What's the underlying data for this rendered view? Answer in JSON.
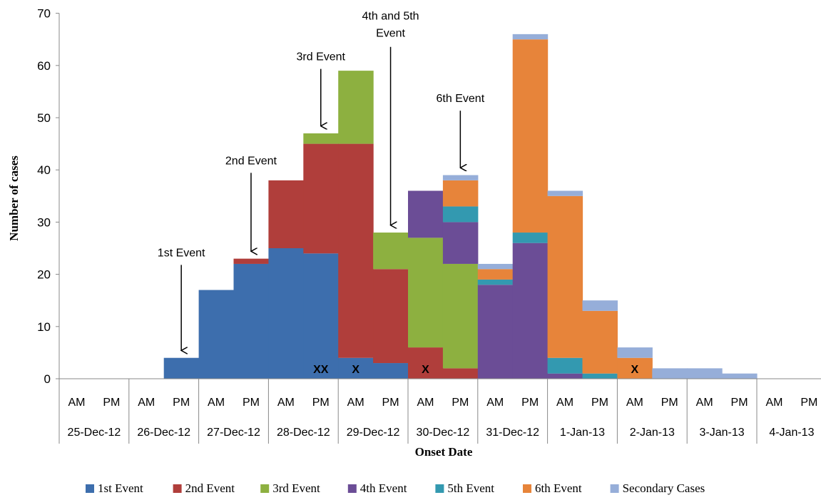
{
  "chart_data": {
    "type": "bar",
    "stacked": true,
    "ylabel": "Number of cases",
    "xlabel": "Onset Date",
    "ylim": [
      0,
      70
    ],
    "yticks": [
      0,
      10,
      20,
      30,
      40,
      50,
      60,
      70
    ],
    "grid": false,
    "legend_position": "bottom",
    "categories": [
      "AM",
      "PM",
      "AM",
      "PM",
      "AM",
      "PM",
      "AM",
      "PM",
      "AM",
      "PM",
      "AM",
      "PM",
      "AM",
      "PM",
      "AM",
      "PM",
      "AM",
      "PM",
      "AM",
      "PM",
      "AM",
      "PM"
    ],
    "dates": [
      "25-Dec-12",
      "26-Dec-12",
      "27-Dec-12",
      "28-Dec-12",
      "29-Dec-12",
      "30-Dec-12",
      "31-Dec-12",
      "1-Jan-13",
      "2-Jan-13",
      "3-Jan-13",
      "4-Jan-13"
    ],
    "series": [
      {
        "name": "1st Event",
        "color": "#3d6ead",
        "values": [
          0,
          0,
          0,
          4,
          17,
          22,
          25,
          24,
          4,
          3,
          0,
          0,
          0,
          0,
          0,
          0,
          0,
          0,
          0,
          0,
          0,
          0
        ]
      },
      {
        "name": "2nd Event",
        "color": "#b03e3b",
        "values": [
          0,
          0,
          0,
          0,
          0,
          1,
          13,
          21,
          41,
          18,
          6,
          2,
          0,
          0,
          0,
          0,
          0,
          0,
          0,
          0,
          0,
          0
        ]
      },
      {
        "name": "3rd Event",
        "color": "#8db040",
        "values": [
          0,
          0,
          0,
          0,
          0,
          0,
          0,
          2,
          14,
          7,
          21,
          20,
          0,
          0,
          0,
          0,
          0,
          0,
          0,
          0,
          0,
          0
        ]
      },
      {
        "name": "4th Event",
        "color": "#6b4d96",
        "values": [
          0,
          0,
          0,
          0,
          0,
          0,
          0,
          0,
          0,
          0,
          9,
          8,
          18,
          26,
          1,
          0,
          0,
          0,
          0,
          0,
          0,
          0
        ]
      },
      {
        "name": "5th Event",
        "color": "#3399b0",
        "values": [
          0,
          0,
          0,
          0,
          0,
          0,
          0,
          0,
          0,
          0,
          0,
          3,
          1,
          2,
          3,
          1,
          0,
          0,
          0,
          0,
          0,
          0
        ]
      },
      {
        "name": "6th Event",
        "color": "#e7843a",
        "values": [
          0,
          0,
          0,
          0,
          0,
          0,
          0,
          0,
          0,
          0,
          0,
          5,
          2,
          37,
          31,
          12,
          4,
          0,
          0,
          0,
          0,
          0
        ]
      },
      {
        "name": "Secondary Cases",
        "color": "#96aed9",
        "values": [
          0,
          0,
          0,
          0,
          0,
          0,
          0,
          0,
          0,
          0,
          0,
          1,
          1,
          1,
          1,
          2,
          2,
          2,
          2,
          1,
          0,
          0
        ]
      }
    ],
    "annotations": [
      {
        "text": "1st Event",
        "slot": 3,
        "arrow_to": 5
      },
      {
        "text": "2nd Event",
        "slot": 5,
        "arrow_to": 24
      },
      {
        "text": "3rd Event",
        "slot": 7,
        "arrow_to": 48
      },
      {
        "text": "4th and 5th",
        "text2": "Event",
        "slot": 9,
        "arrow_to": 29
      },
      {
        "text": "6th Event",
        "slot": 11,
        "arrow_to": 40
      }
    ],
    "x_marks": [
      {
        "text": "XX",
        "slot": 7
      },
      {
        "text": "X",
        "slot": 8
      },
      {
        "text": "X",
        "slot": 10
      },
      {
        "text": "X",
        "slot": 16
      }
    ]
  }
}
